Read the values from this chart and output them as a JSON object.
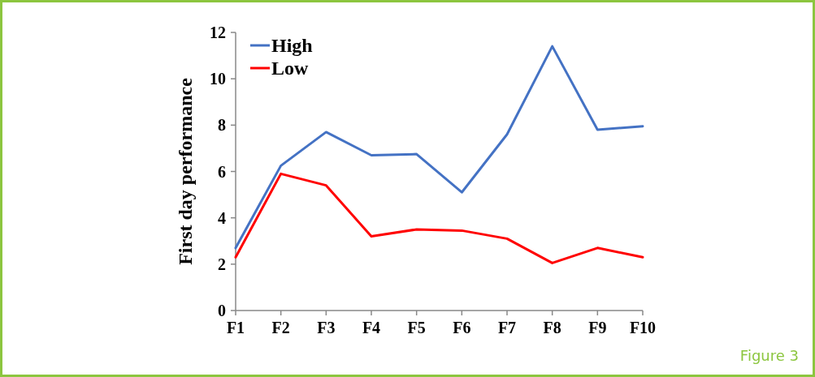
{
  "chart_data": {
    "type": "line",
    "ylabel": "First day performance",
    "categories": [
      "F1",
      "F2",
      "F3",
      "F4",
      "F5",
      "F6",
      "F7",
      "F8",
      "F9",
      "F10"
    ],
    "series": [
      {
        "name": "High",
        "color": "#4472c4",
        "values": [
          2.7,
          6.25,
          7.7,
          6.7,
          6.75,
          5.1,
          7.6,
          11.4,
          7.8,
          7.95
        ]
      },
      {
        "name": "Low",
        "color": "#ff0000",
        "values": [
          2.3,
          5.9,
          5.4,
          3.2,
          3.5,
          3.45,
          3.1,
          2.05,
          2.7,
          2.3
        ]
      }
    ],
    "ylim": [
      0,
      12
    ],
    "yticks": [
      0,
      2,
      4,
      6,
      8,
      10,
      12
    ],
    "grid": false,
    "legend": "top left",
    "marker": "none",
    "line_style": "solid",
    "annotations": [
      "Figure 3"
    ]
  }
}
